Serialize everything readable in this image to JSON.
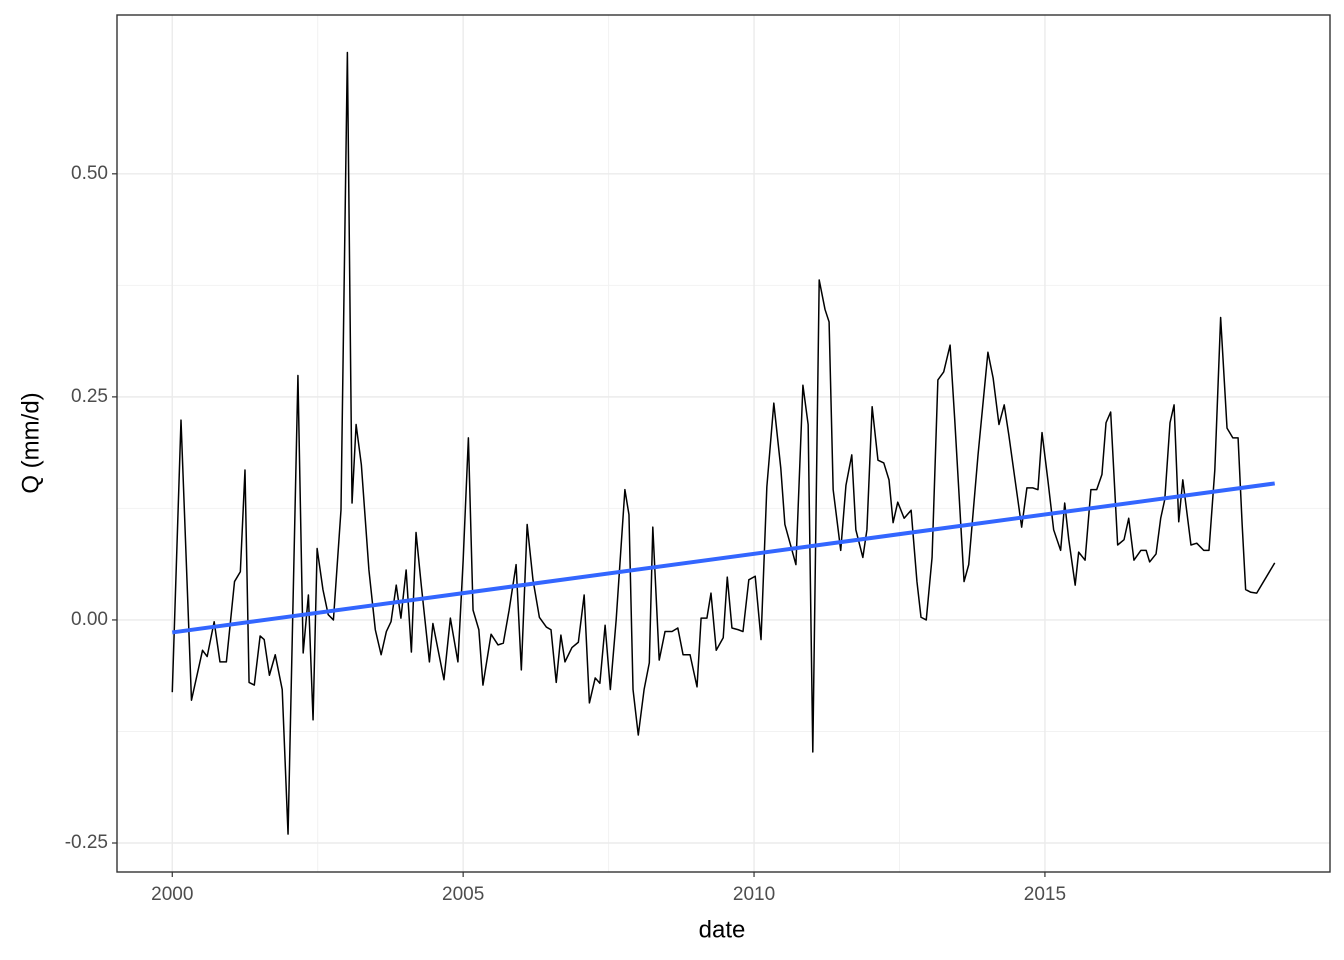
{
  "chart_data": {
    "type": "line",
    "x_label": "date",
    "y_label": "Q (mm/d)",
    "xlim": [
      1999.05,
      2019.9
    ],
    "xticks": [
      2000,
      2005,
      2010,
      2015
    ],
    "ylim": [
      -0.2825,
      0.678
    ],
    "yticks": [
      {
        "value": -0.25,
        "label": "-0.25"
      },
      {
        "value": 0,
        "label": "0.00"
      },
      0.25,
      {
        "value": 0.5,
        "label": "0.50"
      }
    ],
    "grid": true,
    "series": [
      {
        "color": "#000000",
        "x": [
          2000.0,
          2000.15,
          2000.33,
          2000.52,
          2000.6,
          2000.72,
          2000.82,
          2000.93,
          2001.07,
          2001.17,
          2001.25,
          2001.32,
          2001.41,
          2001.51,
          2001.58,
          2001.67,
          2001.77,
          2001.89,
          2001.99,
          2002.16,
          2002.25,
          2002.34,
          2002.42,
          2002.49,
          2002.59,
          2002.68,
          2002.77,
          2002.9,
          2003.01,
          2003.09,
          2003.16,
          2003.25,
          2003.38,
          2003.49,
          2003.59,
          2003.68,
          2003.76,
          2003.85,
          2003.93,
          2004.02,
          2004.11,
          2004.19,
          2004.28,
          2004.42,
          2004.48,
          2004.57,
          2004.67,
          2004.78,
          2004.91,
          2005.0,
          2005.09,
          2005.17,
          2005.27,
          2005.34,
          2005.48,
          2005.6,
          2005.69,
          2005.79,
          2005.91,
          2006.0,
          2006.1,
          2006.2,
          2006.31,
          2006.43,
          2006.51,
          2006.6,
          2006.68,
          2006.75,
          2006.87,
          2006.98,
          2007.08,
          2007.17,
          2007.27,
          2007.35,
          2007.44,
          2007.53,
          2007.63,
          2007.78,
          2007.85,
          2007.92,
          2008.01,
          2008.11,
          2008.2,
          2008.26,
          2008.37,
          2008.47,
          2008.59,
          2008.69,
          2008.78,
          2008.9,
          2009.02,
          2009.09,
          2009.19,
          2009.26,
          2009.35,
          2009.47,
          2009.54,
          2009.62,
          2009.73,
          2009.81,
          2009.91,
          2010.02,
          2010.12,
          2010.22,
          2010.34,
          2010.46,
          2010.53,
          2010.64,
          2010.72,
          2010.84,
          2010.93,
          2011.01,
          2011.12,
          2011.22,
          2011.29,
          2011.36,
          2011.49,
          2011.58,
          2011.68,
          2011.75,
          2011.87,
          2011.94,
          2012.03,
          2012.13,
          2012.23,
          2012.32,
          2012.39,
          2012.47,
          2012.58,
          2012.7,
          2012.8,
          2012.87,
          2012.96,
          2013.06,
          2013.16,
          2013.26,
          2013.37,
          2013.45,
          2013.61,
          2013.69,
          2013.85,
          2014.02,
          2014.11,
          2014.21,
          2014.3,
          2014.38,
          2014.48,
          2014.6,
          2014.69,
          2014.79,
          2014.88,
          2014.95,
          2015.05,
          2015.15,
          2015.27,
          2015.34,
          2015.41,
          2015.52,
          2015.58,
          2015.69,
          2015.79,
          2015.89,
          2015.98,
          2016.05,
          2016.13,
          2016.25,
          2016.36,
          2016.44,
          2016.53,
          2016.65,
          2016.74,
          2016.8,
          2016.91,
          2016.99,
          2017.06,
          2017.15,
          2017.22,
          2017.3,
          2017.37,
          2017.51,
          2017.61,
          2017.73,
          2017.82,
          2017.92,
          2018.02,
          2018.13,
          2018.23,
          2018.32,
          2018.39,
          2018.45,
          2018.54,
          2018.64,
          2018.95
        ],
        "values": [
          -0.081,
          0.224,
          -0.09,
          -0.034,
          -0.041,
          -0.002,
          -0.047,
          -0.047,
          0.043,
          0.054,
          0.168,
          -0.07,
          -0.073,
          -0.018,
          -0.022,
          -0.062,
          -0.039,
          -0.078,
          -0.24,
          0.274,
          -0.037,
          0.028,
          -0.112,
          0.08,
          0.034,
          0.006,
          0.0,
          0.123,
          0.636,
          0.131,
          0.219,
          0.174,
          0.056,
          -0.011,
          -0.039,
          -0.013,
          -0.002,
          0.039,
          0.002,
          0.056,
          -0.036,
          0.098,
          0.039,
          -0.047,
          -0.004,
          -0.034,
          -0.067,
          0.002,
          -0.047,
          0.067,
          0.204,
          0.011,
          -0.011,
          -0.073,
          -0.016,
          -0.028,
          -0.026,
          0.011,
          0.062,
          -0.056,
          0.107,
          0.045,
          0.003,
          -0.008,
          -0.011,
          -0.07,
          -0.017,
          -0.047,
          -0.031,
          -0.025,
          0.028,
          -0.093,
          -0.065,
          -0.071,
          -0.006,
          -0.078,
          0.0,
          0.146,
          0.118,
          -0.078,
          -0.129,
          -0.078,
          -0.048,
          0.104,
          -0.045,
          -0.013,
          -0.013,
          -0.009,
          -0.039,
          -0.039,
          -0.075,
          0.002,
          0.002,
          0.03,
          -0.034,
          -0.02,
          0.048,
          -0.009,
          -0.011,
          -0.013,
          0.045,
          0.049,
          -0.022,
          0.149,
          0.243,
          0.17,
          0.107,
          0.081,
          0.062,
          0.263,
          0.219,
          -0.148,
          0.381,
          0.348,
          0.334,
          0.146,
          0.078,
          0.151,
          0.185,
          0.101,
          0.07,
          0.101,
          0.239,
          0.179,
          0.176,
          0.157,
          0.109,
          0.132,
          0.114,
          0.123,
          0.043,
          0.003,
          0.0,
          0.07,
          0.269,
          0.278,
          0.308,
          0.224,
          0.043,
          0.062,
          0.185,
          0.3,
          0.271,
          0.219,
          0.241,
          0.207,
          0.16,
          0.104,
          0.148,
          0.148,
          0.146,
          0.21,
          0.157,
          0.101,
          0.078,
          0.131,
          0.09,
          0.039,
          0.076,
          0.067,
          0.146,
          0.146,
          0.163,
          0.221,
          0.233,
          0.084,
          0.09,
          0.114,
          0.067,
          0.078,
          0.078,
          0.065,
          0.074,
          0.114,
          0.135,
          0.221,
          0.241,
          0.11,
          0.157,
          0.084,
          0.086,
          0.078,
          0.078,
          0.168,
          0.339,
          0.215,
          0.204,
          0.204,
          0.107,
          0.034,
          0.031,
          0.03,
          0.064
        ]
      },
      {
        "color": "#3366FF",
        "x": [
          2000.0,
          2018.95
        ],
        "values": [
          -0.014,
          0.153
        ]
      }
    ]
  }
}
